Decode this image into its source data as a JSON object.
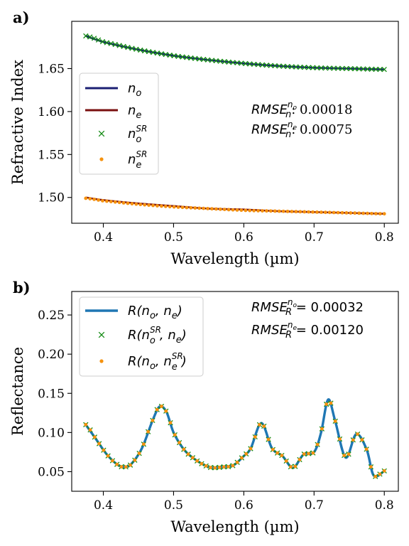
{
  "chart_data": [
    {
      "panel": "a)",
      "type": "line",
      "xlabel": "Wavelength (µm)",
      "ylabel": "Refractive Index",
      "xlim": [
        0.355,
        0.82
      ],
      "ylim": [
        1.47,
        1.705
      ],
      "xticks": [
        0.4,
        0.5,
        0.6,
        0.7,
        0.8
      ],
      "yticks": [
        1.5,
        1.55,
        1.6,
        1.65
      ],
      "xtick_labels": [
        "0.4",
        "0.5",
        "0.6",
        "0.7",
        "0.8"
      ],
      "ytick_labels": [
        "1.50",
        "1.55",
        "1.60",
        "1.65"
      ],
      "legend_position": "center-left",
      "series": [
        {
          "name": "n_o",
          "label_main": "n",
          "label_sub": "o",
          "kind": "line",
          "color": "#1b1f73",
          "x": [
            0.375,
            0.4,
            0.45,
            0.5,
            0.55,
            0.6,
            0.65,
            0.7,
            0.75,
            0.8
          ],
          "y": [
            1.688,
            1.681,
            1.672,
            1.665,
            1.66,
            1.656,
            1.653,
            1.651,
            1.65,
            1.649
          ]
        },
        {
          "name": "n_e",
          "label_main": "n",
          "label_sub": "e",
          "kind": "line",
          "color": "#7a0f0f",
          "x": [
            0.375,
            0.4,
            0.45,
            0.5,
            0.55,
            0.6,
            0.65,
            0.7,
            0.75,
            0.8
          ],
          "y": [
            1.5,
            1.497,
            1.493,
            1.49,
            1.487,
            1.486,
            1.484,
            1.483,
            1.482,
            1.481
          ]
        },
        {
          "name": "n_o^SR",
          "label_main": "n",
          "label_sub": "o",
          "label_sup": "SR",
          "kind": "cross",
          "color": "#138a13",
          "x": [
            0.375,
            0.4,
            0.45,
            0.5,
            0.55,
            0.6,
            0.65,
            0.7,
            0.75,
            0.8
          ],
          "y": [
            1.688,
            1.681,
            1.672,
            1.665,
            1.66,
            1.656,
            1.653,
            1.651,
            1.65,
            1.649
          ]
        },
        {
          "name": "n_e^SR",
          "label_main": "n",
          "label_sub": "e",
          "label_sup": "SR",
          "kind": "dot",
          "color": "#f5920f",
          "x": [
            0.375,
            0.4,
            0.45,
            0.5,
            0.55,
            0.6,
            0.65,
            0.7,
            0.75,
            0.8
          ],
          "y": [
            1.499,
            1.496,
            1.492,
            1.489,
            1.487,
            1.485,
            1.484,
            1.483,
            1.482,
            1.481
          ]
        }
      ],
      "annotations": [
        {
          "main": "RMSE",
          "sub": "n",
          "sup": "n",
          "supsub": "o",
          "rest": ": 0.00018"
        },
        {
          "main": "RMSE",
          "sub": "n",
          "sup": "n",
          "supsub": "e",
          "rest": ": 0.00075"
        }
      ]
    },
    {
      "panel": "b)",
      "type": "line",
      "xlabel": "Wavelength (µm)",
      "ylabel": "Reflectance",
      "xlim": [
        0.355,
        0.82
      ],
      "ylim": [
        0.025,
        0.28
      ],
      "xticks": [
        0.4,
        0.5,
        0.6,
        0.7,
        0.8
      ],
      "yticks": [
        0.05,
        0.1,
        0.15,
        0.2,
        0.25
      ],
      "xtick_labels": [
        "0.4",
        "0.5",
        "0.6",
        "0.7",
        "0.8"
      ],
      "ytick_labels": [
        "0.05",
        "0.10",
        "0.15",
        "0.20",
        "0.25"
      ],
      "legend_position": "top-left",
      "x": [
        0.375,
        0.39,
        0.405,
        0.42,
        0.43,
        0.44,
        0.455,
        0.47,
        0.48,
        0.49,
        0.5,
        0.515,
        0.53,
        0.545,
        0.555,
        0.57,
        0.585,
        0.6,
        0.61,
        0.625,
        0.64,
        0.655,
        0.67,
        0.685,
        0.7,
        0.71,
        0.72,
        0.73,
        0.745,
        0.76,
        0.775,
        0.785,
        0.8
      ],
      "series": [
        {
          "name": "R(n_o, n_e)",
          "kind": "line",
          "color": "#1f77b4",
          "y": [
            0.11,
            0.091,
            0.072,
            0.059,
            0.056,
            0.06,
            0.08,
            0.115,
            0.133,
            0.126,
            0.1,
            0.078,
            0.066,
            0.058,
            0.055,
            0.056,
            0.058,
            0.07,
            0.08,
            0.112,
            0.08,
            0.07,
            0.055,
            0.072,
            0.075,
            0.1,
            0.142,
            0.115,
            0.068,
            0.098,
            0.078,
            0.045,
            0.051
          ]
        },
        {
          "name": "R(n_o^SR, n_e)",
          "kind": "cross",
          "color": "#138a13",
          "y": [
            0.11,
            0.091,
            0.072,
            0.059,
            0.056,
            0.06,
            0.08,
            0.115,
            0.133,
            0.126,
            0.1,
            0.078,
            0.066,
            0.058,
            0.055,
            0.056,
            0.058,
            0.07,
            0.08,
            0.112,
            0.08,
            0.07,
            0.055,
            0.072,
            0.075,
            0.1,
            0.142,
            0.115,
            0.068,
            0.098,
            0.078,
            0.045,
            0.051
          ]
        },
        {
          "name": "R(n_o, n_e^SR)",
          "kind": "dot",
          "color": "#f5920f",
          "y": [
            0.11,
            0.091,
            0.072,
            0.059,
            0.056,
            0.06,
            0.08,
            0.115,
            0.133,
            0.126,
            0.1,
            0.078,
            0.066,
            0.058,
            0.055,
            0.056,
            0.058,
            0.07,
            0.08,
            0.112,
            0.08,
            0.07,
            0.055,
            0.072,
            0.075,
            0.1,
            0.142,
            0.115,
            0.068,
            0.098,
            0.078,
            0.045,
            0.051
          ]
        }
      ],
      "legend": [
        {
          "pre": "R(",
          "a": "n",
          "asub": "o",
          "mid": ", ",
          "b": "n",
          "bsub": "e",
          "post": ")"
        },
        {
          "pre": "R(",
          "a": "n",
          "asub": "o",
          "asup": "SR",
          "mid": ", ",
          "b": "n",
          "bsub": "e",
          "post": ")"
        },
        {
          "pre": "R(",
          "a": "n",
          "asub": "o",
          "mid": ", ",
          "b": "n",
          "bsub": "e",
          "bsup": "SR",
          "post": ")"
        }
      ],
      "annotations": [
        {
          "main": "RMSE",
          "sub": "R",
          "sup": "n",
          "supsub": "o",
          "rest": " = 0.00032"
        },
        {
          "main": "RMSE",
          "sub": "R",
          "sup": "n",
          "supsub": "e",
          "rest": " = 0.00120"
        }
      ]
    }
  ]
}
